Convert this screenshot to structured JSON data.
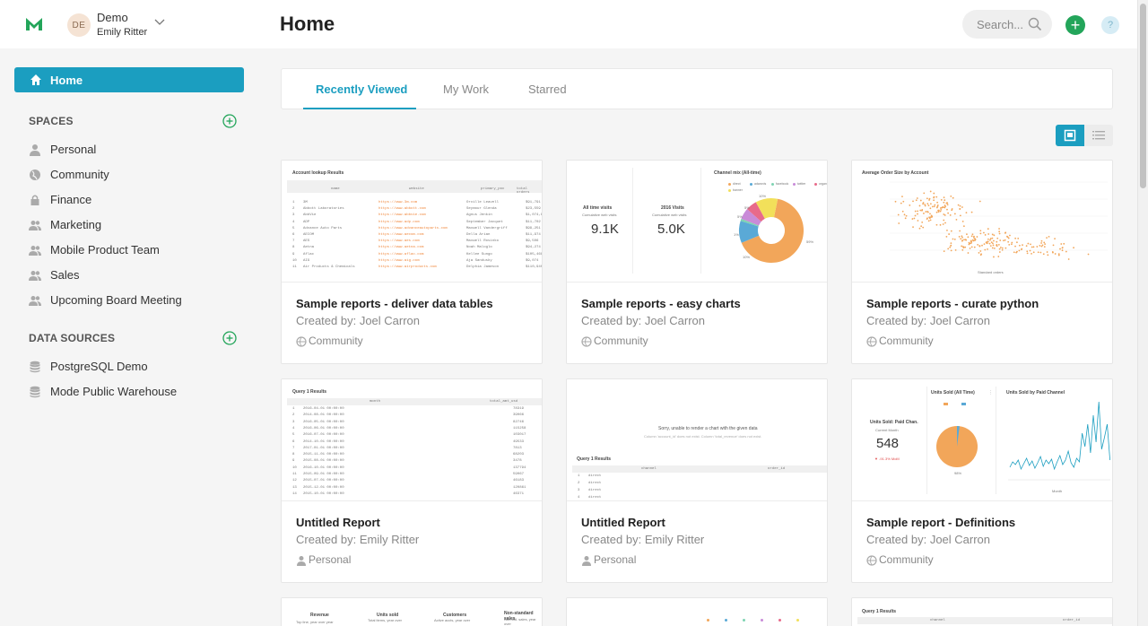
{
  "header": {
    "org_initials": "DE",
    "org_name": "Demo",
    "user_name": "Emily Ritter",
    "page_title": "Home",
    "search_placeholder": "Search...",
    "add_label": "+",
    "help_label": "?"
  },
  "sidebar": {
    "home_label": "Home",
    "spaces_heading": "SPACES",
    "spaces": [
      {
        "label": "Personal",
        "icon": "person-icon"
      },
      {
        "label": "Community",
        "icon": "globe-icon"
      },
      {
        "label": "Finance",
        "icon": "lock-icon"
      },
      {
        "label": "Marketing",
        "icon": "group-icon"
      },
      {
        "label": "Mobile Product Team",
        "icon": "group-icon"
      },
      {
        "label": "Sales",
        "icon": "group-icon"
      },
      {
        "label": "Upcoming Board Meeting",
        "icon": "group-icon"
      }
    ],
    "data_sources_heading": "DATA SOURCES",
    "data_sources": [
      {
        "label": "PostgreSQL Demo",
        "icon": "database-icon"
      },
      {
        "label": "Mode Public Warehouse",
        "icon": "database-icon"
      }
    ]
  },
  "tabs": [
    {
      "label": "Recently Viewed",
      "active": true
    },
    {
      "label": "My Work",
      "active": false
    },
    {
      "label": "Starred",
      "active": false
    }
  ],
  "cards": [
    {
      "title": "Sample reports - deliver data tables",
      "creator": "Created by: Joel Carron",
      "space": "Community",
      "space_icon": "globe-icon"
    },
    {
      "title": "Sample reports - easy charts",
      "creator": "Created by: Joel Carron",
      "space": "Community",
      "space_icon": "globe-icon"
    },
    {
      "title": "Sample reports - curate python",
      "creator": "Created by: Joel Carron",
      "space": "Community",
      "space_icon": "globe-icon"
    },
    {
      "title": "Untitled Report",
      "creator": "Created by: Emily Ritter",
      "space": "Personal",
      "space_icon": "person-icon"
    },
    {
      "title": "Untitled Report",
      "creator": "Created by: Emily Ritter",
      "space": "Personal",
      "space_icon": "person-icon"
    },
    {
      "title": "Sample report - Definitions",
      "creator": "Created by: Joel Carron",
      "space": "Community",
      "space_icon": "globe-icon"
    }
  ],
  "thumbs": {
    "t1": {
      "title": "Account lookup Results",
      "cols": [
        "name",
        "website",
        "primary_poc",
        "total orders"
      ],
      "rows": [
        [
          "1",
          "3M",
          "https://www.3m.com",
          "Orville Leavell",
          "$91,791"
        ],
        [
          "2",
          "Abbott Laboratories",
          "https://www.abbott.com",
          "Seymour Glenda",
          "$23,559"
        ],
        [
          "3",
          "AbbVie",
          "https://www.abbvie.com",
          "Agnus Jenkin",
          "$1,074,808"
        ],
        [
          "4",
          "ADP",
          "https://www.adp.com",
          "September Jacquet",
          "$11,702"
        ],
        [
          "5",
          "Advance Auto Parts",
          "https://www.advanceautoparts.com",
          "Maxwell Vandergriff",
          "$99,251"
        ],
        [
          "6",
          "AECOM",
          "https://www.aecom.com",
          "Della Arian",
          "$11,974"
        ],
        [
          "7",
          "AES",
          "https://www.aes.com",
          "Maxwell Rosinko",
          "$9,506"
        ],
        [
          "8",
          "Aetna",
          "https://www.aetna.com",
          "Noah Maloglo",
          "$94,274"
        ],
        [
          "9",
          "Aflac",
          "https://www.aflac.com",
          "Kellee Sungo",
          "$105,468"
        ],
        [
          "10",
          "AIG",
          "https://www.aig.com",
          "Aja Sandusky",
          "$9,074"
        ],
        [
          "11",
          "Air Products & Chemicals",
          "https://www.airproducts.com",
          "Delphia Jameson",
          "$110,940"
        ]
      ]
    },
    "t2": {
      "all_time_label": "All time visits",
      "all_time_sub": "Cumulative web visits",
      "all_time_value": "9.1K",
      "year_label": "2016 Visits",
      "year_sub": "Cumulative web visits",
      "year_value": "5.0K",
      "pie_title": "Channel mix (All-time)",
      "legend": [
        "direct",
        "adwords",
        "facebook",
        "twitter",
        "organic",
        "banner"
      ],
      "pie_labels": [
        "10%",
        "5%",
        "5%",
        "1%",
        "10%",
        "59%"
      ]
    },
    "t3": {
      "title": "Average Order Size by Account",
      "xlabel": "Standard orders",
      "ylabel": "Standard orders"
    },
    "t4": {
      "title": "Query 1 Results",
      "cols": [
        "month",
        "total_amt_usd"
      ],
      "rows": [
        [
          "1",
          "2016-04-01 00:00:00",
          "78319"
        ],
        [
          "2",
          "2014-08-01 00:00:00",
          "39066"
        ],
        [
          "3",
          "2016-05-01 00:00:00",
          "82746"
        ],
        [
          "4",
          "2016-06-01 00:00:00",
          "115258"
        ],
        [
          "5",
          "2016-07-01 00:00:00",
          "103017"
        ],
        [
          "6",
          "2014-10-01 00:00:00",
          "49533"
        ],
        [
          "7",
          "2017-01-01 00:00:00",
          "7813"
        ],
        [
          "8",
          "2015-11-01 00:00:00",
          "68203"
        ],
        [
          "9",
          "2015-08-01 00:00:00",
          "3478"
        ],
        [
          "10",
          "2016-10-01 00:00:00",
          "137794"
        ],
        [
          "11",
          "2015-09-01 00:00:00",
          "59067"
        ],
        [
          "12",
          "2015-07-01 00:00:00",
          "46183"
        ],
        [
          "13",
          "2015-12-01 00:00:00",
          "120861"
        ],
        [
          "14",
          "2015-10-01 00:00:00",
          "46371"
        ]
      ]
    },
    "t5": {
      "message": "Sorry, unable to render a chart with the given data",
      "sub": "Column 'account_id' does not exist. Column 'total_revenue' does not exist.",
      "title": "Query 1 Results",
      "cols": [
        "channel",
        "order_id"
      ],
      "rows": [
        [
          "1",
          "direct"
        ],
        [
          "2",
          "direct"
        ],
        [
          "3",
          "direct"
        ],
        [
          "4",
          "direct"
        ]
      ]
    },
    "t6": {
      "kpi_title": "Units Sold: Paid Chan.",
      "kpi_sub": "Current Month",
      "kpi_value": "548",
      "kpi_change": "▼ -91.3% MoM",
      "pie_title": "Units Sold (All Time)",
      "line_title": "Units Sold by Paid Channel",
      "pie_label": "98%",
      "line_xlabel": "Month"
    },
    "t7": {
      "labels": [
        "Revenue",
        "Units sold",
        "Customers",
        "Non-standard sales"
      ],
      "subs": [
        "Top line, year over year",
        "Total items, year over",
        "Active accts, year over",
        "Non-std. sales, year over"
      ]
    },
    "t9": {
      "title": "Query 1 Results",
      "cols": [
        "channel",
        "order_id"
      ]
    }
  },
  "colors": {
    "accent": "#1b9ec0",
    "green": "#23a55a",
    "pie": [
      "#f2a65a",
      "#5aa9d6",
      "#7ed3b2",
      "#c98bd8",
      "#e86a8a",
      "#f2e05a"
    ]
  }
}
